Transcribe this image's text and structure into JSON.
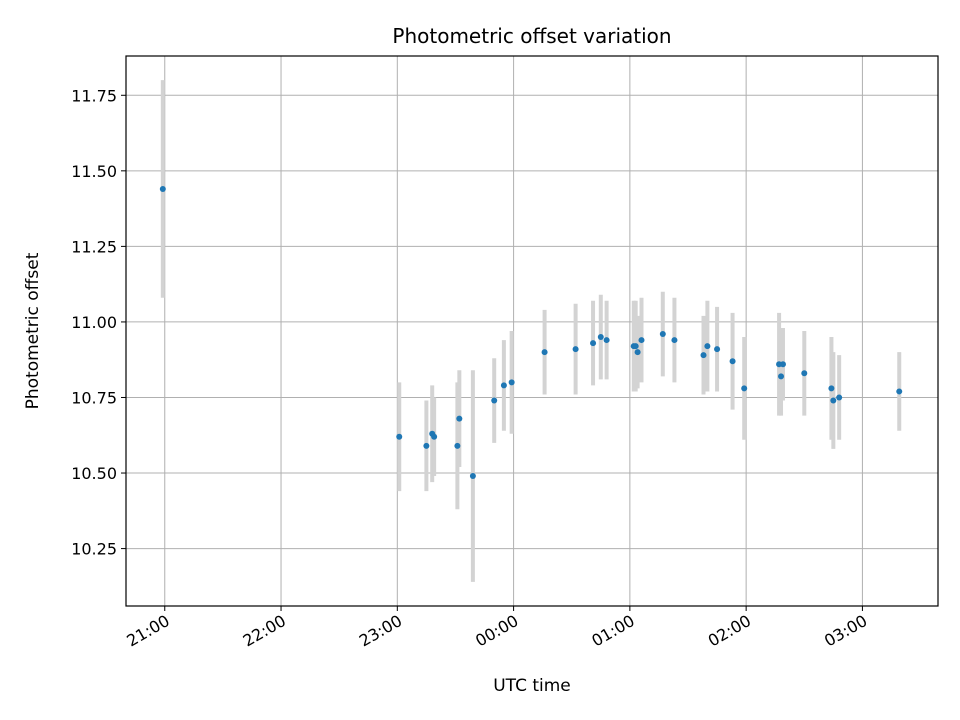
{
  "chart_data": {
    "type": "scatter",
    "title": "Photometric offset variation",
    "xlabel": "UTC time",
    "ylabel": "Photometric offset",
    "xlim": [
      "20:40",
      "03:39"
    ],
    "ylim": [
      10.06,
      11.88
    ],
    "x_ticks": [
      "21:00",
      "22:00",
      "23:00",
      "00:00",
      "01:00",
      "02:00",
      "03:00"
    ],
    "y_ticks": [
      "10.25",
      "10.50",
      "10.75",
      "11.00",
      "11.25",
      "11.50",
      "11.75"
    ],
    "grid": true,
    "marker_color": "#1f77b4",
    "errorbar_color": "#d3d3d3",
    "series": [
      {
        "points": [
          {
            "x": "20:59",
            "y": 11.44,
            "yerr": 0.36
          },
          {
            "x": "23:01",
            "y": 10.62,
            "yerr": 0.18
          },
          {
            "x": "23:15",
            "y": 10.59,
            "yerr": 0.15
          },
          {
            "x": "23:18",
            "y": 10.63,
            "yerr": 0.16
          },
          {
            "x": "23:19",
            "y": 10.62,
            "yerr": 0.13
          },
          {
            "x": "23:31",
            "y": 10.59,
            "yerr": 0.21
          },
          {
            "x": "23:32",
            "y": 10.68,
            "yerr": 0.16
          },
          {
            "x": "23:39",
            "y": 10.49,
            "yerr": 0.35
          },
          {
            "x": "23:50",
            "y": 10.74,
            "yerr": 0.14
          },
          {
            "x": "23:55",
            "y": 10.79,
            "yerr": 0.15
          },
          {
            "x": "23:59",
            "y": 10.8,
            "yerr": 0.17
          },
          {
            "x": "00:16",
            "y": 10.9,
            "yerr": 0.14
          },
          {
            "x": "00:32",
            "y": 10.91,
            "yerr": 0.15
          },
          {
            "x": "00:41",
            "y": 10.93,
            "yerr": 0.14
          },
          {
            "x": "00:45",
            "y": 10.95,
            "yerr": 0.14
          },
          {
            "x": "00:48",
            "y": 10.94,
            "yerr": 0.13
          },
          {
            "x": "01:02",
            "y": 10.92,
            "yerr": 0.15
          },
          {
            "x": "01:03",
            "y": 10.92,
            "yerr": 0.15
          },
          {
            "x": "01:04",
            "y": 10.9,
            "yerr": 0.12
          },
          {
            "x": "01:06",
            "y": 10.94,
            "yerr": 0.14
          },
          {
            "x": "01:17",
            "y": 10.96,
            "yerr": 0.14
          },
          {
            "x": "01:23",
            "y": 10.94,
            "yerr": 0.14
          },
          {
            "x": "01:38",
            "y": 10.89,
            "yerr": 0.13
          },
          {
            "x": "01:40",
            "y": 10.92,
            "yerr": 0.15
          },
          {
            "x": "01:45",
            "y": 10.91,
            "yerr": 0.14
          },
          {
            "x": "01:53",
            "y": 10.87,
            "yerr": 0.16
          },
          {
            "x": "01:59",
            "y": 10.78,
            "yerr": 0.17
          },
          {
            "x": "02:17",
            "y": 10.86,
            "yerr": 0.17
          },
          {
            "x": "02:18",
            "y": 10.82,
            "yerr": 0.13
          },
          {
            "x": "02:19",
            "y": 10.86,
            "yerr": 0.12
          },
          {
            "x": "02:30",
            "y": 10.83,
            "yerr": 0.14
          },
          {
            "x": "02:44",
            "y": 10.78,
            "yerr": 0.17
          },
          {
            "x": "02:45",
            "y": 10.74,
            "yerr": 0.16
          },
          {
            "x": "02:48",
            "y": 10.75,
            "yerr": 0.14
          },
          {
            "x": "03:19",
            "y": 10.77,
            "yerr": 0.13
          }
        ]
      }
    ]
  }
}
